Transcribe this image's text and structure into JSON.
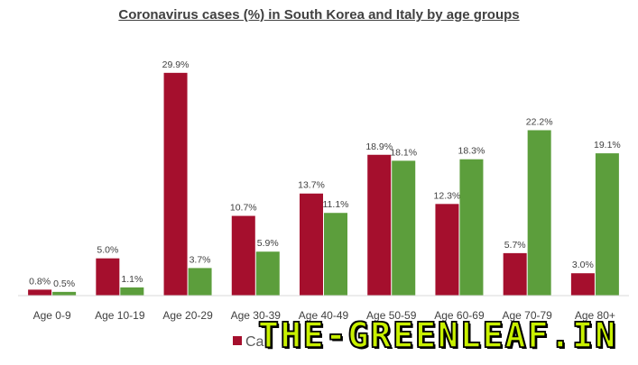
{
  "chart_data": {
    "type": "bar",
    "title": "Coronavirus cases (%) in South Korea and Italy by age groups",
    "categories": [
      "Age 0-9",
      "Age 10-19",
      "Age 20-29",
      "Age 30-39",
      "Age 40-49",
      "Age 50-59",
      "Age 60-69",
      "Age 70-79",
      "Age 80+"
    ],
    "series": [
      {
        "color": "#A50F2D",
        "values": [
          0.8,
          5.0,
          29.9,
          10.7,
          13.7,
          18.9,
          12.3,
          5.7,
          3.0
        ],
        "labels": [
          "0.8%",
          "5.0%",
          "29.9%",
          "10.7%",
          "13.7%",
          "18.9%",
          "12.3%",
          "5.7%",
          "3.0%"
        ]
      },
      {
        "color": "#5C9E3C",
        "values": [
          0.5,
          1.1,
          3.7,
          5.9,
          11.1,
          18.1,
          18.3,
          22.2,
          19.1
        ],
        "labels": [
          "0.5%",
          "1.1%",
          "3.7%",
          "5.9%",
          "11.1%",
          "18.1%",
          "18.3%",
          "22.2%",
          "19.1%"
        ]
      }
    ],
    "ylim": [
      0,
      30
    ],
    "grid": false,
    "legend": {
      "placement": "bottom",
      "visible_text": "Ca"
    }
  },
  "watermark": {
    "text": "THE-GREENLEAF.IN"
  }
}
